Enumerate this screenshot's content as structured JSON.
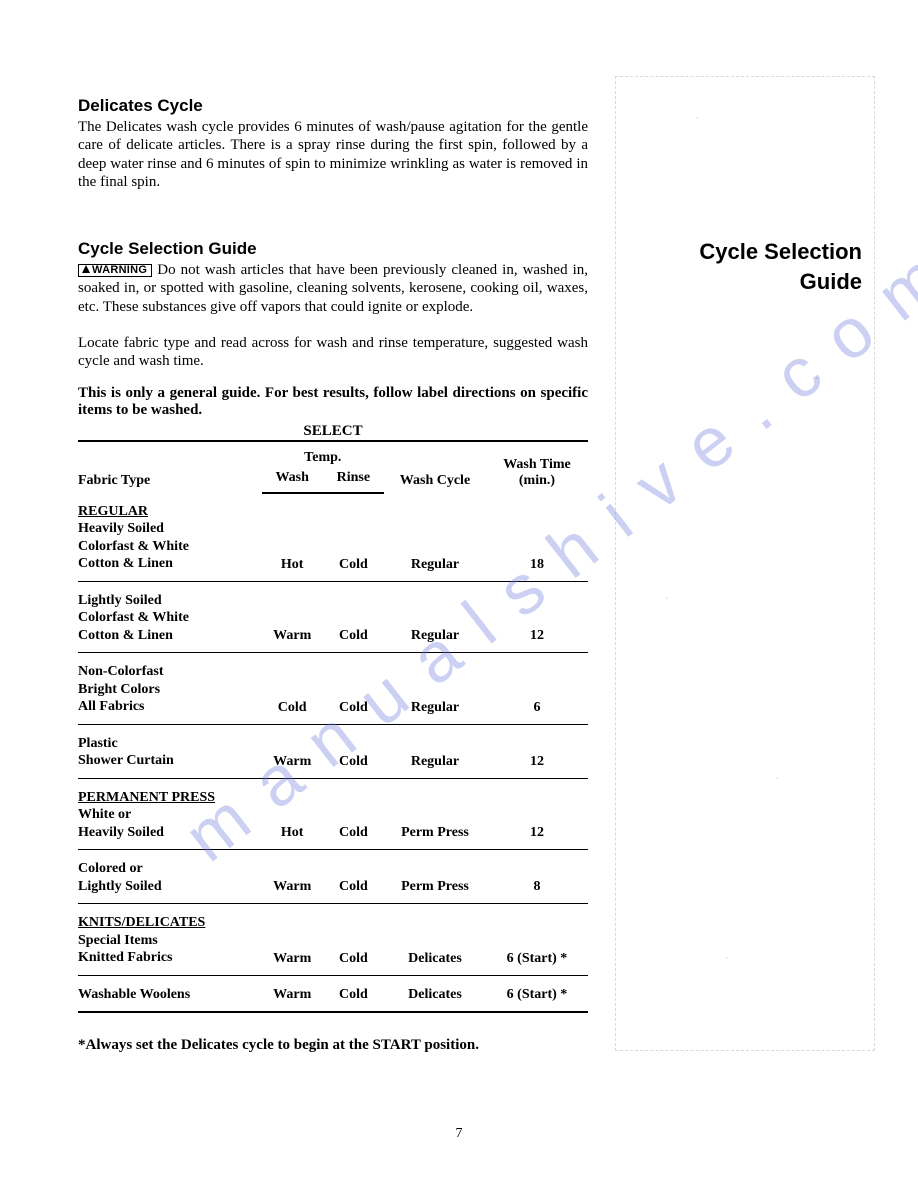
{
  "watermark_text": "manualshive.com",
  "sections": {
    "delicates": {
      "title": "Delicates Cycle",
      "body": "The Delicates wash cycle provides 6 minutes of wash/pause agitation for the gentle care of delicate articles.  There is a spray rinse during the first spin, followed by a deep water rinse and 6 minutes of spin to minimize wrinkling as water is removed in the final spin."
    },
    "guide": {
      "title": "Cycle Selection Guide",
      "warning_label": "WARNING",
      "warning_body": "  Do not wash articles that have been previously cleaned in, washed in, soaked in, or spotted with gasoline, cleaning solvents, kerosene, cooking oil, waxes, etc.  These substances give off vapors that could ignite or explode.",
      "locate": "Locate fabric type and read across for wash and rinse temperature,  suggested wash cycle and wash time.",
      "note": "This is only a general guide. For best results, follow label directions on specific items to be washed.",
      "select_label": "SELECT"
    }
  },
  "side_title_line1": "Cycle Selection",
  "side_title_line2": "Guide",
  "table": {
    "headers": {
      "fabric": "Fabric Type",
      "temp": "Temp.",
      "wash": "Wash",
      "rinse": "Rinse",
      "cycle": "Wash Cycle",
      "time": "Wash Time (min.)"
    },
    "rows": [
      {
        "cat": "REGULAR",
        "lines": [
          "Heavily Soiled",
          "Colorfast & White",
          "Cotton & Linen"
        ],
        "wash": "Hot",
        "rinse": "Cold",
        "cycle": "Regular",
        "time": "18",
        "first": true
      },
      {
        "lines": [
          "Lightly Soiled",
          "Colorfast & White",
          "Cotton & Linen"
        ],
        "wash": "Warm",
        "rinse": "Cold",
        "cycle": "Regular",
        "time": "12"
      },
      {
        "lines": [
          "Non-Colorfast",
          "Bright Colors",
          "All Fabrics"
        ],
        "wash": "Cold",
        "rinse": "Cold",
        "cycle": "Regular",
        "time": "6"
      },
      {
        "lines": [
          "Plastic",
          "Shower Curtain"
        ],
        "wash": "Warm",
        "rinse": "Cold",
        "cycle": "Regular",
        "time": "12"
      },
      {
        "cat": "PERMANENT PRESS",
        "lines": [
          "White or",
          "Heavily Soiled"
        ],
        "wash": "Hot",
        "rinse": "Cold",
        "cycle": "Perm Press",
        "time": "12"
      },
      {
        "lines": [
          "Colored or",
          "Lightly Soiled"
        ],
        "wash": "Warm",
        "rinse": "Cold",
        "cycle": "Perm Press",
        "time": "8"
      },
      {
        "cat": "KNITS/DELICATES",
        "lines": [
          "Special Items",
          "Knitted Fabrics"
        ],
        "wash": "Warm",
        "rinse": "Cold",
        "cycle": "Delicates",
        "time": "6 (Start) *"
      },
      {
        "lines": [
          "Washable Woolens"
        ],
        "wash": "Warm",
        "rinse": "Cold",
        "cycle": "Delicates",
        "time": "6 (Start) *",
        "last": true
      }
    ]
  },
  "footnote": "*Always set the Delicates cycle to begin at the START position.",
  "page_number": "7"
}
